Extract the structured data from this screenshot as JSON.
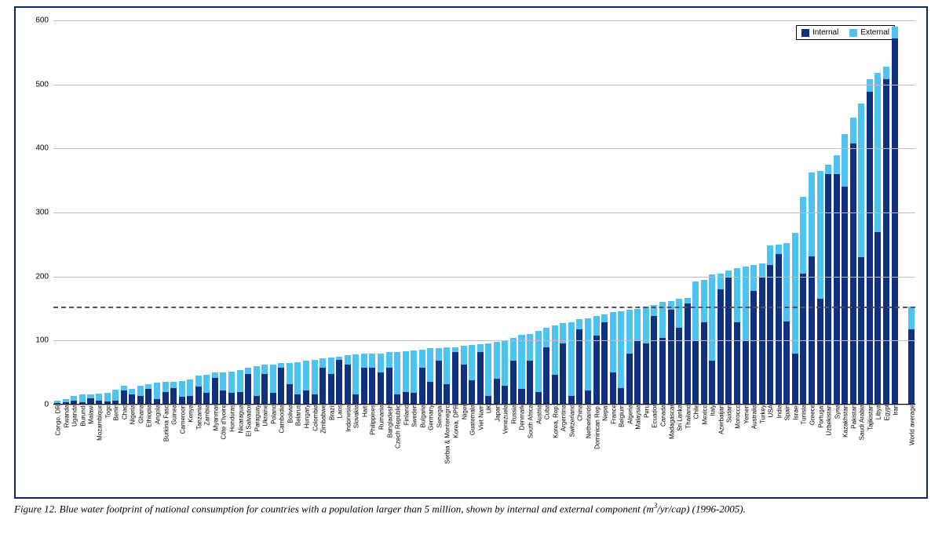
{
  "caption_prefix": "Figure 12. Blue water footprint of national consumption for countries with a population larger than 5 million, shown by internal and external component (m",
  "caption_super": "3",
  "caption_suffix": "/yr/cap) (1996-2005).",
  "chart": {
    "type": "stacked-bar",
    "y_max": 600,
    "y_ticks": [
      0,
      100,
      200,
      300,
      400,
      500,
      600
    ],
    "reference_line": 153,
    "colors": {
      "internal": "#11307f",
      "external": "#4fc3f0",
      "grid": "#bdbdbd",
      "axis": "#000000",
      "dash": "#555555",
      "frame": "#0a2a66"
    },
    "legend": [
      {
        "label": "Internal",
        "color": "#11307f"
      },
      {
        "label": "External",
        "color": "#4fc3f0"
      }
    ],
    "series": [
      {
        "label": "Congo, DR",
        "internal": 3,
        "external": 3
      },
      {
        "label": "Rwanda",
        "internal": 4,
        "external": 5
      },
      {
        "label": "Uganda",
        "internal": 6,
        "external": 7
      },
      {
        "label": "Burundi",
        "internal": 4,
        "external": 12
      },
      {
        "label": "Malawi",
        "internal": 10,
        "external": 6
      },
      {
        "label": "Mozambique",
        "internal": 6,
        "external": 11
      },
      {
        "label": "Togo",
        "internal": 5,
        "external": 14
      },
      {
        "label": "Benin",
        "internal": 6,
        "external": 17
      },
      {
        "label": "Chad",
        "internal": 22,
        "external": 7
      },
      {
        "label": "Nigeria",
        "internal": 16,
        "external": 8
      },
      {
        "label": "Ghana",
        "internal": 14,
        "external": 16
      },
      {
        "label": "Ethiopia",
        "internal": 24,
        "external": 8
      },
      {
        "label": "Angola",
        "internal": 9,
        "external": 25
      },
      {
        "label": "Burkina Faso",
        "internal": 20,
        "external": 15
      },
      {
        "label": "Guinea",
        "internal": 26,
        "external": 10
      },
      {
        "label": "Cameroon",
        "internal": 12,
        "external": 25
      },
      {
        "label": "Kenya",
        "internal": 14,
        "external": 25
      },
      {
        "label": "Tanzania",
        "internal": 28,
        "external": 17
      },
      {
        "label": "Zambia",
        "internal": 18,
        "external": 28
      },
      {
        "label": "Myanmar",
        "internal": 42,
        "external": 8
      },
      {
        "label": "Côte d'Ivoire",
        "internal": 22,
        "external": 28
      },
      {
        "label": "Honduras",
        "internal": 18,
        "external": 34
      },
      {
        "label": "Nicaragua",
        "internal": 20,
        "external": 34
      },
      {
        "label": "El Salvador",
        "internal": 48,
        "external": 10
      },
      {
        "label": "Paraguay",
        "internal": 14,
        "external": 46
      },
      {
        "label": "Ukraine",
        "internal": 48,
        "external": 14
      },
      {
        "label": "Poland",
        "internal": 18,
        "external": 45
      },
      {
        "label": "Cambodia",
        "internal": 58,
        "external": 7
      },
      {
        "label": "Bolivia",
        "internal": 32,
        "external": 33
      },
      {
        "label": "Belarus",
        "internal": 16,
        "external": 50
      },
      {
        "label": "Hungary",
        "internal": 22,
        "external": 46
      },
      {
        "label": "Colombia",
        "internal": 16,
        "external": 54
      },
      {
        "label": "Zimbabwe",
        "internal": 58,
        "external": 14
      },
      {
        "label": "Brazil",
        "internal": 48,
        "external": 25
      },
      {
        "label": "Laos",
        "internal": 70,
        "external": 5
      },
      {
        "label": "Indonesia",
        "internal": 62,
        "external": 15
      },
      {
        "label": "Slovakia",
        "internal": 16,
        "external": 62
      },
      {
        "label": "Haiti",
        "internal": 58,
        "external": 22
      },
      {
        "label": "Philippines",
        "internal": 58,
        "external": 22
      },
      {
        "label": "Rumania",
        "internal": 50,
        "external": 30
      },
      {
        "label": "Bangladesh",
        "internal": 58,
        "external": 24
      },
      {
        "label": "Czech Republic",
        "internal": 16,
        "external": 66
      },
      {
        "label": "Finland",
        "internal": 20,
        "external": 63
      },
      {
        "label": "Sweden",
        "internal": 18,
        "external": 67
      },
      {
        "label": "Bulgaria",
        "internal": 58,
        "external": 28
      },
      {
        "label": "Germany",
        "internal": 36,
        "external": 52
      },
      {
        "label": "Senegal",
        "internal": 68,
        "external": 20
      },
      {
        "label": "Serbia & Montenegro",
        "internal": 32,
        "external": 58
      },
      {
        "label": "Korea, DPR",
        "internal": 82,
        "external": 8
      },
      {
        "label": "Niger",
        "internal": 63,
        "external": 29
      },
      {
        "label": "Guatemala",
        "internal": 38,
        "external": 55
      },
      {
        "label": "Viet Nam",
        "internal": 82,
        "external": 12
      },
      {
        "label": "UK",
        "internal": 14,
        "external": 82
      },
      {
        "label": "Japan",
        "internal": 40,
        "external": 58
      },
      {
        "label": "Venezuela",
        "internal": 30,
        "external": 70
      },
      {
        "label": "Russia",
        "internal": 68,
        "external": 36
      },
      {
        "label": "Denmark",
        "internal": 24,
        "external": 85
      },
      {
        "label": "South Africa",
        "internal": 68,
        "external": 42
      },
      {
        "label": "Austria",
        "internal": 20,
        "external": 95
      },
      {
        "label": "Cuba",
        "internal": 90,
        "external": 30
      },
      {
        "label": "Korea, Rep.",
        "internal": 46,
        "external": 78
      },
      {
        "label": "Argentina",
        "internal": 95,
        "external": 32
      },
      {
        "label": "Switzerland",
        "internal": 14,
        "external": 115
      },
      {
        "label": "China",
        "internal": 118,
        "external": 15
      },
      {
        "label": "Netherlands",
        "internal": 22,
        "external": 113
      },
      {
        "label": "Dominican Rep.",
        "internal": 108,
        "external": 30
      },
      {
        "label": "Nepal",
        "internal": 128,
        "external": 13
      },
      {
        "label": "France",
        "internal": 50,
        "external": 94
      },
      {
        "label": "Belgium",
        "internal": 26,
        "external": 120
      },
      {
        "label": "Algeria",
        "internal": 80,
        "external": 68
      },
      {
        "label": "Malaysia",
        "internal": 100,
        "external": 50
      },
      {
        "label": "Peru",
        "internal": 95,
        "external": 58
      },
      {
        "label": "Ecuador",
        "internal": 138,
        "external": 18
      },
      {
        "label": "Canada",
        "internal": 104,
        "external": 56
      },
      {
        "label": "Madagascar",
        "internal": 148,
        "external": 14
      },
      {
        "label": "Sri Lanka",
        "internal": 120,
        "external": 45
      },
      {
        "label": "Thailand",
        "internal": 158,
        "external": 8
      },
      {
        "label": "Chile",
        "internal": 100,
        "external": 92
      },
      {
        "label": "Mexico",
        "internal": 128,
        "external": 67
      },
      {
        "label": "Italy",
        "internal": 68,
        "external": 135
      },
      {
        "label": "Azerbaijan",
        "internal": 180,
        "external": 25
      },
      {
        "label": "Sudan",
        "internal": 200,
        "external": 10
      },
      {
        "label": "Morocco",
        "internal": 128,
        "external": 85
      },
      {
        "label": "Yemen",
        "internal": 100,
        "external": 115
      },
      {
        "label": "Australia",
        "internal": 178,
        "external": 40
      },
      {
        "label": "Turkey",
        "internal": 200,
        "external": 20
      },
      {
        "label": "USA",
        "internal": 218,
        "external": 30
      },
      {
        "label": "India",
        "internal": 235,
        "external": 15
      },
      {
        "label": "Spain",
        "internal": 130,
        "external": 122
      },
      {
        "label": "Israel",
        "internal": 80,
        "external": 188
      },
      {
        "label": "Tunisia",
        "internal": 205,
        "external": 120
      },
      {
        "label": "Greece",
        "internal": 232,
        "external": 130
      },
      {
        "label": "Portugal",
        "internal": 165,
        "external": 200
      },
      {
        "label": "Uzbekistan",
        "internal": 360,
        "external": 15
      },
      {
        "label": "Syria",
        "internal": 360,
        "external": 30
      },
      {
        "label": "Kazakhstan",
        "internal": 340,
        "external": 82
      },
      {
        "label": "Pakistan",
        "internal": 408,
        "external": 40
      },
      {
        "label": "Saudi Arabia",
        "internal": 230,
        "external": 240
      },
      {
        "label": "Tajikistan",
        "internal": 488,
        "external": 20
      },
      {
        "label": "Libya",
        "internal": 270,
        "external": 248
      },
      {
        "label": "Egypt",
        "internal": 508,
        "external": 20
      },
      {
        "label": "Iran",
        "internal": 572,
        "external": 18
      },
      {
        "_gap": true
      },
      {
        "label": "World average",
        "internal": 118,
        "external": 35
      }
    ]
  }
}
